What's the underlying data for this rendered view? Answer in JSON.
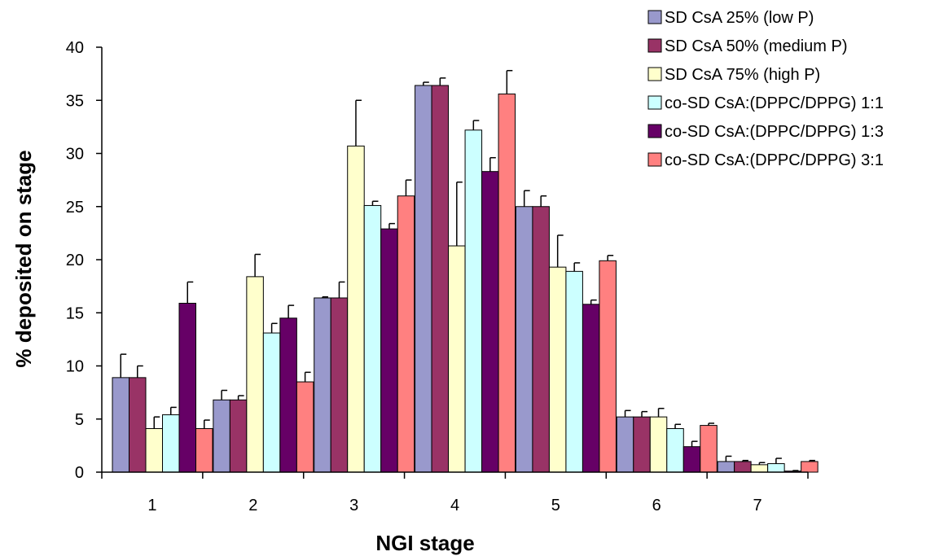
{
  "chart_data": {
    "type": "bar",
    "xlabel": "NGI stage",
    "ylabel": "% deposited on stage",
    "ylim": [
      0,
      40
    ],
    "yticks": [
      0,
      5,
      10,
      15,
      20,
      25,
      30,
      35,
      40
    ],
    "categories": [
      "1",
      "2",
      "3",
      "4",
      "5",
      "6",
      "7"
    ],
    "grid": false,
    "legend_position": "top-right",
    "series": [
      {
        "name": "SD CsA 25% (low P)",
        "color": "#9999cc",
        "values": [
          8.9,
          6.8,
          16.4,
          36.4,
          25.0,
          5.2,
          1.0
        ],
        "errors": [
          2.2,
          0.9,
          0.1,
          0.3,
          1.5,
          0.6,
          0.5
        ]
      },
      {
        "name": "SD CsA 50% (medium P)",
        "color": "#993366",
        "values": [
          8.9,
          6.8,
          16.4,
          36.4,
          25.0,
          5.2,
          1.0
        ],
        "errors": [
          1.1,
          0.4,
          1.5,
          0.7,
          1.0,
          0.5,
          0.1
        ]
      },
      {
        "name": "SD CsA 75% (high P)",
        "color": "#ffffcc",
        "values": [
          4.1,
          18.4,
          30.7,
          21.3,
          19.3,
          5.2,
          0.7
        ],
        "errors": [
          1.1,
          2.1,
          4.3,
          6.0,
          3.0,
          0.8,
          0.2
        ]
      },
      {
        "name": "co-SD CsA:(DPPC/DPPG) 1:1",
        "color": "#ccffff",
        "values": [
          5.4,
          13.1,
          25.1,
          32.2,
          18.9,
          4.1,
          0.8
        ],
        "errors": [
          0.7,
          0.9,
          0.4,
          0.9,
          0.8,
          0.4,
          0.5
        ]
      },
      {
        "name": "co-SD CsA:(DPPC/DPPG) 1:3",
        "color": "#660066",
        "values": [
          15.9,
          14.5,
          22.9,
          28.3,
          15.8,
          2.4,
          0.1
        ],
        "errors": [
          2.0,
          1.2,
          0.5,
          1.3,
          0.4,
          0.5,
          0.05
        ]
      },
      {
        "name": "co-SD CsA:(DPPC/DPPG) 3:1",
        "color": "#ff8080",
        "values": [
          4.1,
          8.5,
          26.0,
          35.6,
          19.9,
          4.4,
          1.0
        ],
        "errors": [
          0.8,
          0.9,
          1.5,
          2.2,
          0.5,
          0.2,
          0.1
        ]
      }
    ]
  }
}
